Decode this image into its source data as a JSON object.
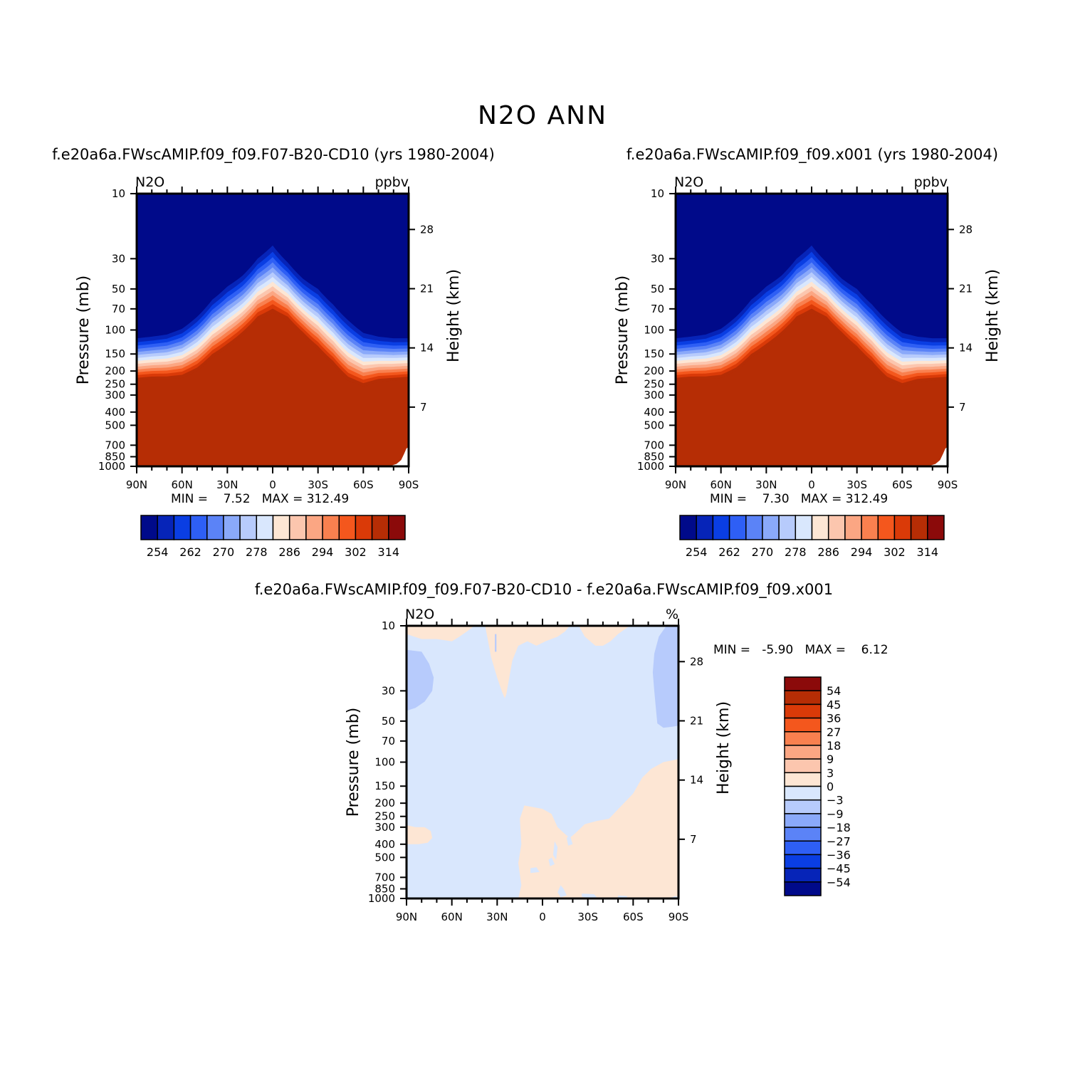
{
  "figure": {
    "title": "N2O ANN"
  },
  "panels": [
    {
      "title": "f.e20a6a.FWscAMIP.f09_f09.F07-B20-CD10 (yrs 1980-2004)",
      "variable": "N2O",
      "units": "ppbv",
      "minmax": "MIN =    7.52   MAX = 312.49"
    },
    {
      "title": "f.e20a6a.FWscAMIP.f09_f09.x001 (yrs 1980-2004)",
      "variable": "N2O",
      "units": "ppbv",
      "minmax": "MIN =    7.30   MAX = 312.49"
    },
    {
      "title": "f.e20a6a.FWscAMIP.f09_f09.F07-B20-CD10 - f.e20a6a.FWscAMIP.f09_f09.x001",
      "variable": "N2O",
      "units": "%",
      "minmax": "MIN =   -5.90   MAX =    6.12"
    }
  ],
  "axes": {
    "ylabel": "Pressure (mb)",
    "ylabel_right": "Height (km)",
    "pressure_ticks": [
      "10",
      "30",
      "50",
      "70",
      "100",
      "150",
      "200",
      "250",
      "300",
      "400",
      "500",
      "700",
      "850",
      "1000"
    ],
    "height_ticks": [
      "28",
      "21",
      "14",
      "7"
    ],
    "lat_ticks": [
      "90N",
      "60N",
      "30N",
      "0",
      "30S",
      "60S",
      "90S"
    ]
  },
  "colorbars": {
    "absolute": {
      "tick_labels": [
        "254",
        "262",
        "270",
        "278",
        "286",
        "294",
        "302",
        "314"
      ],
      "colors": [
        "#000a8a",
        "#0624b8",
        "#0a3ee3",
        "#2e5ff5",
        "#5b83f7",
        "#8aa9fa",
        "#b7cbfc",
        "#d9e7fd",
        "#fde6d4",
        "#fcc6ae",
        "#fba683",
        "#f9804f",
        "#f4571d",
        "#da3a08",
        "#b62d05",
        "#8b0a0a"
      ]
    },
    "difference": {
      "tick_labels": [
        "54",
        "45",
        "36",
        "27",
        "18",
        "9",
        "3",
        "0",
        "-3",
        "-9",
        "-18",
        "-27",
        "-36",
        "-45",
        "-54"
      ],
      "colors": [
        "#8b0a0a",
        "#b62d05",
        "#da3a08",
        "#f4571d",
        "#f9804f",
        "#fba683",
        "#fcc6ae",
        "#fde6d4",
        "#d9e7fd",
        "#b7cbfc",
        "#8aa9fa",
        "#5b83f7",
        "#2e5ff5",
        "#0a3ee3",
        "#0624b8",
        "#000a8a"
      ]
    }
  },
  "chart_data": [
    {
      "type": "heatmap",
      "subtype": "zonal-mean latitude-pressure filled contour",
      "title": "f.e20a6a.FWscAMIP.f09_f09.F07-B20-CD10 (yrs 1980-2004)",
      "xlabel": "",
      "ylabel": "Pressure (mb)",
      "ylabel_right": "Height (km)",
      "x_range": [
        "90N",
        "90S"
      ],
      "y_range_mb": [
        10,
        1000
      ],
      "y_scale": "log",
      "units": "ppbv",
      "min": 7.52,
      "max": 312.49,
      "contour_levels": [
        254,
        258,
        262,
        266,
        270,
        274,
        278,
        282,
        286,
        290,
        294,
        298,
        302,
        306,
        314
      ],
      "pattern": {
        "lat": [
          -90,
          -80,
          -70,
          -60,
          -50,
          -40,
          -30,
          -20,
          -10,
          0,
          10,
          20,
          30,
          40,
          50,
          60,
          70,
          80,
          90
        ],
        "top_of_high_values_mb": [
          230,
          235,
          240,
          260,
          235,
          180,
          140,
          110,
          85,
          75,
          85,
          110,
          135,
          160,
          200,
          225,
          230,
          230,
          235
        ],
        "transition_top_mb": [
          115,
          115,
          112,
          105,
          85,
          65,
          50,
          42,
          32,
          24,
          30,
          40,
          48,
          60,
          80,
          98,
          108,
          112,
          115
        ]
      }
    },
    {
      "type": "heatmap",
      "subtype": "zonal-mean latitude-pressure filled contour",
      "title": "f.e20a6a.FWscAMIP.f09_f09.x001 (yrs 1980-2004)",
      "xlabel": "",
      "ylabel": "Pressure (mb)",
      "ylabel_right": "Height (km)",
      "x_range": [
        "90N",
        "90S"
      ],
      "y_range_mb": [
        10,
        1000
      ],
      "y_scale": "log",
      "units": "ppbv",
      "min": 7.3,
      "max": 312.49,
      "contour_levels": [
        254,
        258,
        262,
        266,
        270,
        274,
        278,
        282,
        286,
        290,
        294,
        298,
        302,
        306,
        314
      ]
    },
    {
      "type": "heatmap",
      "subtype": "zonal-mean latitude-pressure filled contour (difference)",
      "title": "f.e20a6a.FWscAMIP.f09_f09.F07-B20-CD10 - f.e20a6a.FWscAMIP.f09_f09.x001",
      "xlabel": "",
      "ylabel": "Pressure (mb)",
      "ylabel_right": "Height (km)",
      "x_range": [
        "90N",
        "90S"
      ],
      "y_range_mb": [
        10,
        1000
      ],
      "y_scale": "log",
      "units": "%",
      "min": -5.9,
      "max": 6.12,
      "contour_levels": [
        -54,
        -45,
        -36,
        -27,
        -18,
        -9,
        -3,
        0,
        3,
        9,
        18,
        27,
        36,
        45,
        54
      ],
      "dominant_bin": "-3 to 0",
      "positive_regions": [
        "0 to 3 near 20N-30S above 40 mb",
        "0 to 3 in southern troposphere 10N-90S below 150 mb",
        "0 to 3 near 90N 300-400 mb"
      ],
      "negative_regions": [
        "-9 to -3 near 90N 15-40 mb",
        "-9 to -3 near 90S 10-55 mb"
      ]
    }
  ]
}
